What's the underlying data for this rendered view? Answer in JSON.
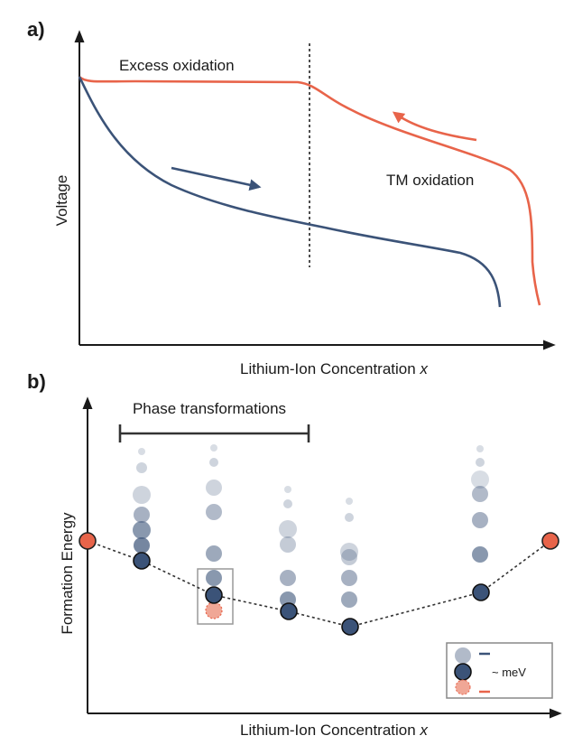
{
  "panel_a": {
    "label": "a)",
    "y_label": "Voltage",
    "x_label": "Lithium-Ion Concentration",
    "x_variable": "x",
    "annotations": [
      "Excess oxidation",
      "TM oxidation"
    ]
  },
  "panel_b": {
    "label": "b)",
    "y_label": "Formation Energy",
    "x_label": "Lithium-Ion Concentration",
    "x_variable": "x",
    "annotations": [
      "Phase transformations"
    ],
    "legend_label": "~ meV"
  }
}
